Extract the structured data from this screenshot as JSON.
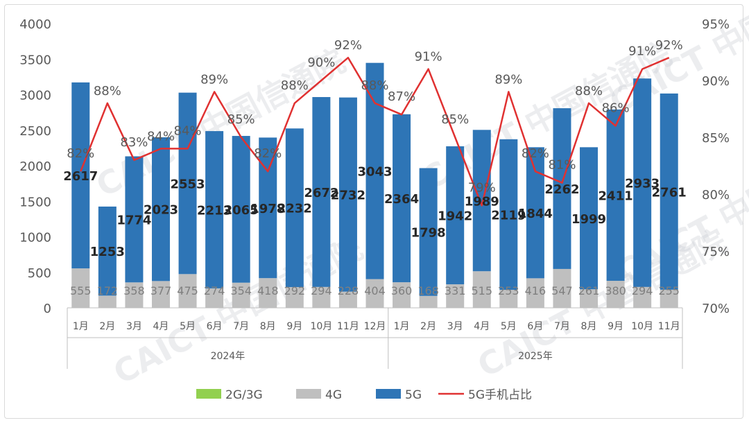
{
  "chart_data": {
    "type": "bar",
    "stacked": true,
    "categories": [
      "1月",
      "2月",
      "3月",
      "4月",
      "5月",
      "6月",
      "7月",
      "8月",
      "9月",
      "10月",
      "11月",
      "12月",
      "1月",
      "2月",
      "3月",
      "4月",
      "5月",
      "6月",
      "7月",
      "8月",
      "9月",
      "10月",
      "11月"
    ],
    "groups": [
      {
        "label": "2024年",
        "count": 12
      },
      {
        "label": "2025年",
        "count": 11
      }
    ],
    "series": [
      {
        "name": "2G/3G",
        "color": "#92d050",
        "values": [
          0,
          0,
          0,
          0,
          0,
          0,
          0,
          0,
          0,
          0,
          0,
          0,
          0,
          0,
          0,
          0,
          0,
          0,
          0,
          0,
          0,
          0,
          0
        ]
      },
      {
        "name": "4G",
        "color": "#bfbfbf",
        "values": [
          555,
          172,
          358,
          377,
          475,
          274,
          354,
          418,
          292,
          294,
          228,
          404,
          360,
          168,
          331,
          515,
          253,
          416,
          547,
          261,
          380,
          294,
          255
        ]
      },
      {
        "name": "5G",
        "color": "#2e75b6",
        "values": [
          2617,
          1253,
          1774,
          2023,
          2553,
          2213,
          2065,
          1978,
          2232,
          2672,
          2732,
          3043,
          2364,
          1798,
          1942,
          1989,
          2119,
          1844,
          2262,
          1999,
          2411,
          2933,
          2761
        ]
      }
    ],
    "line_series": {
      "name": "5G手机占比",
      "color": "#e03131",
      "axis": "right",
      "values": [
        82,
        88,
        83,
        84,
        84,
        89,
        85,
        82,
        88,
        90,
        92,
        88,
        87,
        91,
        85,
        79,
        89,
        82,
        81,
        88,
        86,
        91,
        92
      ],
      "labels": [
        "82%",
        "88%",
        "83%",
        "84%",
        "84%",
        "89%",
        "85%",
        "82%",
        "88%",
        "90%",
        "92%",
        "88%",
        "87%",
        "91%",
        "85%",
        "79%",
        "89%",
        "82%",
        "81%",
        "88%",
        "86%",
        "91%",
        "92%"
      ]
    },
    "y_left": {
      "min": 0,
      "max": 4000,
      "step": 500,
      "ticks": [
        "0",
        "500",
        "1000",
        "1500",
        "2000",
        "2500",
        "3000",
        "3500",
        "4000"
      ]
    },
    "y_right": {
      "min": 70,
      "max": 95,
      "step": 5,
      "ticks": [
        "70%",
        "75%",
        "80%",
        "85%",
        "90%",
        "95%"
      ]
    },
    "legend": {
      "position": "bottom",
      "items": [
        "2G/3G",
        "4G",
        "5G",
        "5G手机占比"
      ]
    },
    "watermark": "CAICT 中国信通院",
    "grid": false
  }
}
